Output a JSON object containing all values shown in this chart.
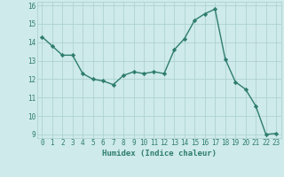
{
  "xlabel": "Humidex (Indice chaleur)",
  "x": [
    0,
    1,
    2,
    3,
    4,
    5,
    6,
    7,
    8,
    9,
    10,
    11,
    12,
    13,
    14,
    15,
    16,
    17,
    18,
    19,
    20,
    21,
    22,
    23
  ],
  "y": [
    14.3,
    13.8,
    13.3,
    13.3,
    12.3,
    12.0,
    11.9,
    11.7,
    12.2,
    12.4,
    12.3,
    12.4,
    12.3,
    13.6,
    14.2,
    15.2,
    15.55,
    15.8,
    13.1,
    11.85,
    11.45,
    10.55,
    9.0,
    9.05
  ],
  "line_color": "#2e7d6e",
  "marker": "D",
  "marker_size": 2.2,
  "line_width": 1.0,
  "bg_color": "#ceeaea",
  "grid_color": "#aacece",
  "ylim": [
    8.8,
    16.2
  ],
  "xlim": [
    -0.5,
    23.5
  ],
  "yticks": [
    9,
    10,
    11,
    12,
    13,
    14,
    15,
    16
  ],
  "xticks": [
    0,
    1,
    2,
    3,
    4,
    5,
    6,
    7,
    8,
    9,
    10,
    11,
    12,
    13,
    14,
    15,
    16,
    17,
    18,
    19,
    20,
    21,
    22,
    23
  ],
  "xlabel_fontsize": 6.5,
  "tick_fontsize": 5.5,
  "tick_color": "#2e7d6e"
}
